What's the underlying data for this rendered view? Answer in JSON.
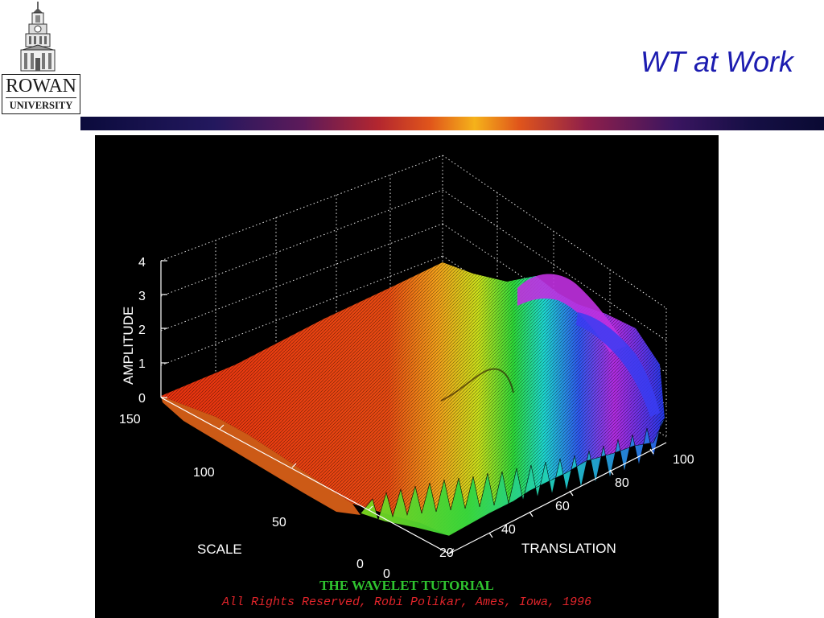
{
  "header": {
    "logo": {
      "line1": "ROWAN",
      "line2": "UNIVERSITY",
      "icon": "building-tower-icon"
    },
    "title": "WT at Work",
    "title_color": "#1c1cb0"
  },
  "figure": {
    "axis_labels": {
      "amplitude": "AMPLITUDE",
      "scale": "SCALE",
      "translation": "TRANSLATION"
    },
    "amplitude_ticks": [
      "0",
      "1",
      "2",
      "3",
      "4"
    ],
    "scale_ticks": [
      "0",
      "50",
      "100",
      "150"
    ],
    "translation_ticks": [
      "0",
      "20",
      "40",
      "60",
      "80",
      "100"
    ],
    "caption_title": "THE WAVELET TUTORIAL",
    "caption_credit": "All Rights Reserved, Robi Polikar, Ames, Iowa, 1996",
    "colors": {
      "background": "#000000",
      "caption_title": "#2fc42f",
      "caption_credit": "#e0242a"
    }
  }
}
